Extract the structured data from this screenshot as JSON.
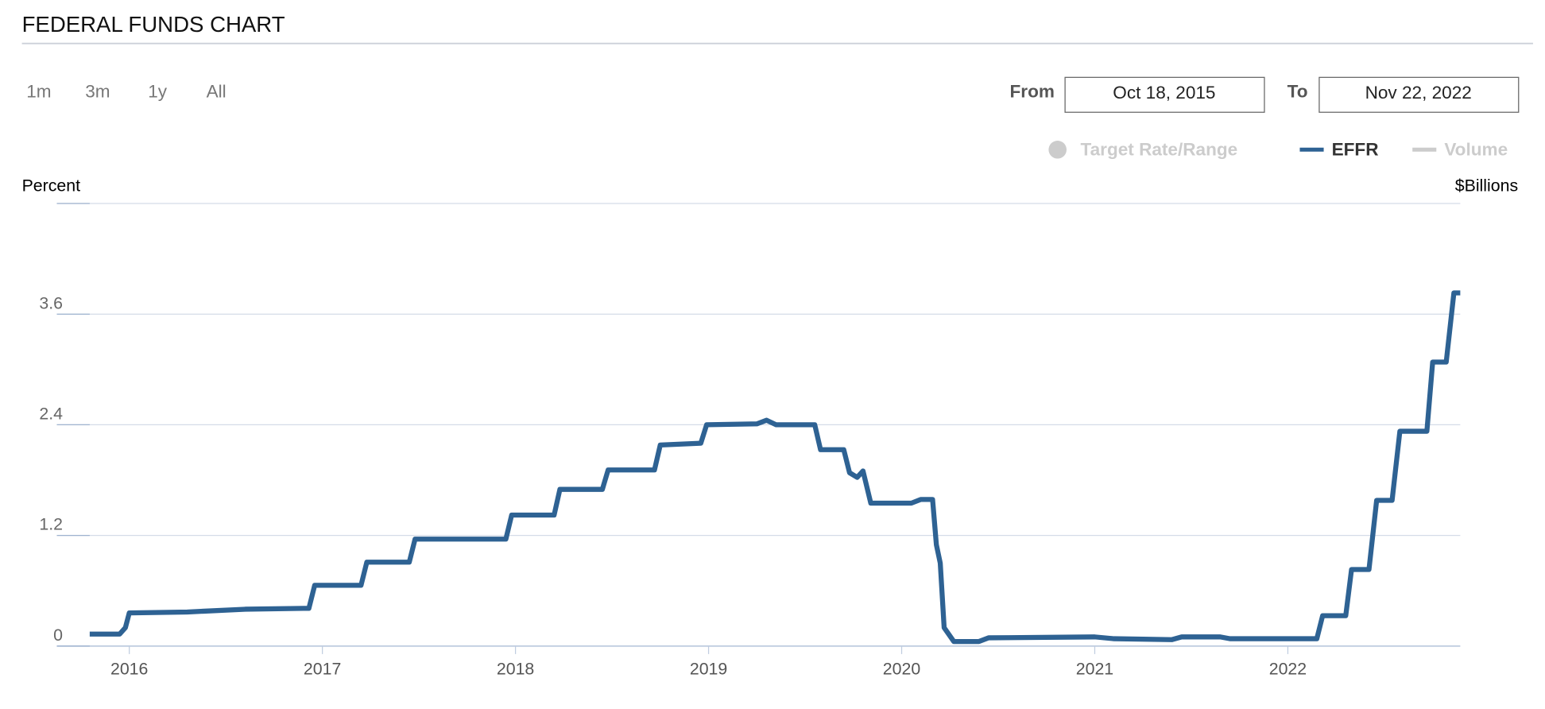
{
  "chart_data": {
    "type": "line",
    "title": "FEDERAL FUNDS CHART",
    "range_buttons": [
      "1m",
      "3m",
      "1y",
      "All"
    ],
    "from_label": "From",
    "from_date": "Oct 18, 2015",
    "to_label": "To",
    "to_date": "Nov 22, 2022",
    "legend": [
      {
        "name": "Target Rate/Range",
        "color": "#cccccc",
        "marker": "circle"
      },
      {
        "name": "EFFR",
        "color": "#2e6293",
        "marker": "line"
      },
      {
        "name": "Volume",
        "color": "#cccccc",
        "marker": "line"
      }
    ],
    "y_label": "Percent",
    "y2_label": "$Billions",
    "x": [
      2015.795,
      2015.95,
      2015.98,
      2016.0,
      2016.3,
      2016.6,
      2016.93,
      2016.96,
      2017.2,
      2017.23,
      2017.45,
      2017.48,
      2017.95,
      2017.98,
      2018.2,
      2018.23,
      2018.45,
      2018.48,
      2018.72,
      2018.75,
      2018.96,
      2018.99,
      2019.25,
      2019.3,
      2019.35,
      2019.55,
      2019.58,
      2019.7,
      2019.73,
      2019.77,
      2019.8,
      2019.84,
      2020.05,
      2020.1,
      2020.16,
      2020.18,
      2020.2,
      2020.22,
      2020.27,
      2020.4,
      2020.45,
      2021.0,
      2021.1,
      2021.4,
      2021.45,
      2021.65,
      2021.7,
      2022.15,
      2022.18,
      2022.3,
      2022.33,
      2022.42,
      2022.46,
      2022.54,
      2022.58,
      2022.72,
      2022.75,
      2022.82,
      2022.86,
      2022.893
    ],
    "series": [
      {
        "name": "EFFR",
        "color": "#2e6293",
        "values": [
          0.13,
          0.13,
          0.2,
          0.36,
          0.37,
          0.4,
          0.41,
          0.66,
          0.66,
          0.91,
          0.91,
          1.16,
          1.16,
          1.42,
          1.42,
          1.7,
          1.7,
          1.91,
          1.91,
          2.18,
          2.2,
          2.4,
          2.41,
          2.45,
          2.4,
          2.4,
          2.13,
          2.13,
          1.88,
          1.83,
          1.9,
          1.55,
          1.55,
          1.59,
          1.59,
          1.1,
          0.9,
          0.2,
          0.05,
          0.05,
          0.09,
          0.1,
          0.08,
          0.07,
          0.1,
          0.1,
          0.08,
          0.08,
          0.33,
          0.33,
          0.83,
          0.83,
          1.58,
          1.58,
          2.33,
          2.33,
          3.08,
          3.08,
          3.83,
          3.83
        ]
      }
    ],
    "xlim": [
      2015.795,
      2022.893
    ],
    "xticks": [
      2016,
      2017,
      2018,
      2019,
      2020,
      2021,
      2022
    ],
    "ylim": [
      0,
      4.8
    ],
    "yticks": [
      0,
      1.2,
      2.4,
      3.6
    ],
    "grid": true
  }
}
